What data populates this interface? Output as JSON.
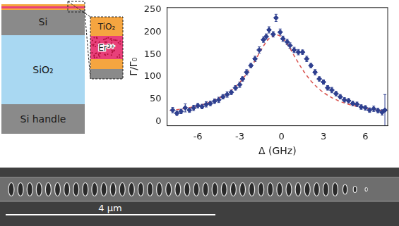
{
  "schematic": {
    "layers": [
      "Si",
      "SiO₂",
      "Si handle"
    ],
    "inset_layers": [
      "TiO₂",
      "Er³⁺"
    ]
  },
  "chart_data": {
    "type": "scatter",
    "x_label": "Δ (GHz)",
    "y_label": "Γ/Γ₀",
    "xlim": [
      -8.2,
      7.6
    ],
    "xticks": [
      -6,
      -3,
      0,
      3,
      6
    ],
    "ylim": [
      -10,
      255
    ],
    "yticks": [
      0,
      50,
      100,
      150,
      200,
      250
    ],
    "grid": false,
    "series": [
      {
        "type": "scatter",
        "marker": "diamond",
        "color": "#2e3f8f",
        "x": [
          -7.8,
          -7.5,
          -7.2,
          -6.9,
          -6.6,
          -6.3,
          -6.0,
          -5.7,
          -5.4,
          -5.1,
          -4.8,
          -4.5,
          -4.2,
          -3.9,
          -3.6,
          -3.3,
          -3.0,
          -2.8,
          -2.5,
          -2.2,
          -1.9,
          -1.6,
          -1.3,
          -1.1,
          -0.9,
          -0.6,
          -0.4,
          -0.1,
          0.1,
          0.4,
          0.6,
          0.9,
          1.2,
          1.5,
          1.8,
          2.1,
          2.4,
          2.7,
          3.0,
          3.3,
          3.6,
          3.9,
          4.2,
          4.5,
          4.8,
          5.1,
          5.4,
          5.7,
          6.0,
          6.3,
          6.6,
          6.9,
          7.2,
          7.4
        ],
        "values": [
          25,
          18,
          22,
          30,
          25,
          30,
          35,
          33,
          38,
          40,
          45,
          48,
          55,
          60,
          65,
          75,
          82,
          95,
          110,
          125,
          140,
          160,
          183,
          190,
          205,
          195,
          232,
          200,
          185,
          178,
          170,
          160,
          155,
          155,
          140,
          125,
          110,
          95,
          88,
          75,
          70,
          62,
          55,
          48,
          46,
          40,
          38,
          32,
          30,
          25,
          28,
          24,
          20,
          25
        ],
        "errors": [
          6,
          5,
          5,
          9,
          5,
          6,
          5,
          5,
          6,
          5,
          5,
          6,
          5,
          6,
          5,
          5,
          6,
          5,
          6,
          5,
          6,
          7,
          6,
          6,
          7,
          6,
          8,
          7,
          6,
          6,
          6,
          6,
          6,
          5,
          6,
          5,
          6,
          5,
          5,
          5,
          6,
          5,
          5,
          5,
          5,
          5,
          5,
          5,
          5,
          5,
          6,
          5,
          6,
          35
        ]
      },
      {
        "type": "line",
        "line_style": "dashed",
        "color": "#d9534f",
        "x": [
          -8,
          -7.5,
          -7,
          -6.5,
          -6,
          -5.5,
          -5,
          -4.5,
          -4,
          -3.5,
          -3,
          -2.5,
          -2,
          -1.5,
          -1,
          -0.5,
          -0.4,
          0,
          0.5,
          1,
          1.5,
          2,
          2.5,
          3,
          3.5,
          4,
          4.5,
          5,
          5.5,
          6,
          6.5,
          7,
          7.5
        ],
        "values": [
          24.3,
          26.2,
          28.5,
          31.3,
          34.7,
          39.0,
          44.4,
          51.4,
          60.3,
          72.0,
          87.2,
          106.8,
          131,
          158,
          182.2,
          194.6,
          195,
          189,
          168.5,
          141.7,
          116,
          94.5,
          77.6,
          64.6,
          54.7,
          47,
          41,
          36.3,
          32.6,
          29.6,
          27.1,
          25,
          23.6
        ]
      }
    ]
  },
  "micrograph": {
    "scale_bar": "4 μm"
  }
}
